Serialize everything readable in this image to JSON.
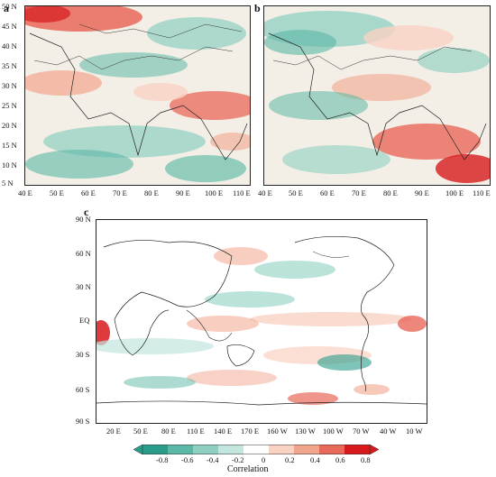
{
  "panels": {
    "a": {
      "label": "a",
      "lat_ticks": [
        "50 N",
        "45 N",
        "40 N",
        "35 N",
        "30 N",
        "25 N",
        "20 N",
        "15 N",
        "10 N",
        "5 N"
      ],
      "lon_ticks": [
        "40 E",
        "50 E",
        "60 E",
        "70 E",
        "80 E",
        "90 E",
        "100 E",
        "110 E"
      ]
    },
    "b": {
      "label": "b",
      "lon_ticks": [
        "40 E",
        "50 E",
        "60 E",
        "70 E",
        "80 E",
        "90 E",
        "100 E",
        "110 E"
      ]
    },
    "c": {
      "label": "c",
      "lat_ticks": [
        "90 N",
        "60 N",
        "30 N",
        "EQ",
        "30 S",
        "60 S",
        "90 S"
      ],
      "lon_ticks": [
        "20 E",
        "50 E",
        "80 E",
        "110 E",
        "140 E",
        "170 E",
        "160 W",
        "130 W",
        "100 W",
        "70 W",
        "40 W",
        "10 W"
      ]
    }
  },
  "colorbar": {
    "title": "Correlation",
    "tick_labels": [
      "-0.8",
      "-0.6",
      "-0.4",
      "-0.2",
      "0",
      "0.2",
      "0.4",
      "0.6",
      "0.8"
    ],
    "colors": [
      "#2a9d8a",
      "#5cb8a6",
      "#8fd0c2",
      "#c3e6df",
      "#ffffff",
      "#f9d2c3",
      "#f2a58d",
      "#e8685a",
      "#d7191c"
    ]
  }
}
